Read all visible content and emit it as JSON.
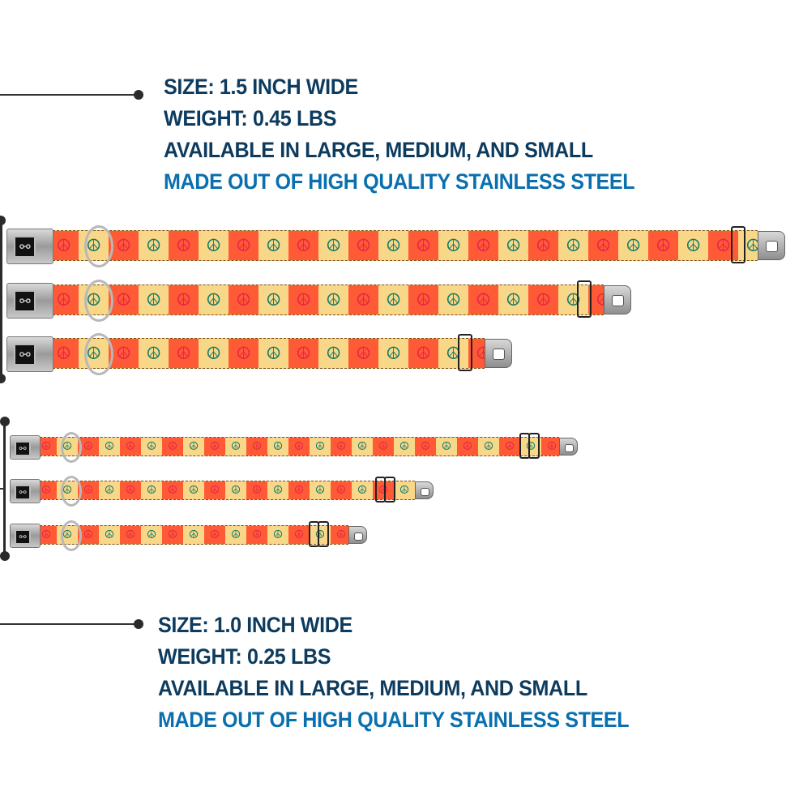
{
  "wide_spec": {
    "size": "SIZE: 1.5 INCH WIDE",
    "weight": "WEIGHT: 0.45 LBS",
    "availability": "AVAILABLE IN LARGE, MEDIUM, AND SMALL",
    "material": "MADE OUT OF HIGH QUALITY STAINLESS STEEL"
  },
  "narrow_spec": {
    "size": "SIZE: 1.0 INCH WIDE",
    "weight": "WEIGHT: 0.25 LBS",
    "availability": "AVAILABLE IN LARGE, MEDIUM, AND SMALL",
    "material": "MADE OUT OF HIGH QUALITY STAINLESS STEEL"
  },
  "colors": {
    "text": "#0d3b5e",
    "highlight": "#0a6fae",
    "stripe_orange": "#ff5a36",
    "stripe_yellow": "#f8d888",
    "peace_red": "#e8244a",
    "peace_green": "#137a6a"
  },
  "icons": {
    "pattern": "peace-sign-icon",
    "buckle": "bone-icon"
  }
}
